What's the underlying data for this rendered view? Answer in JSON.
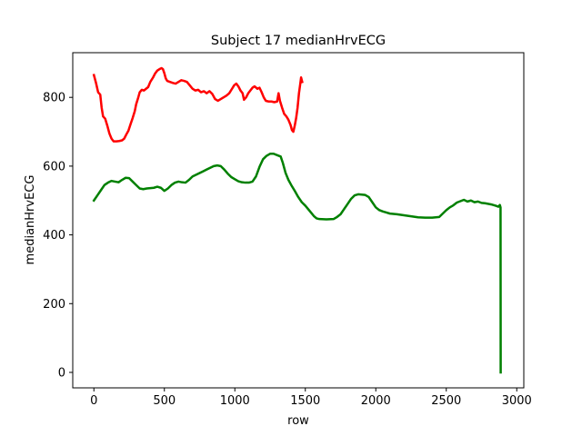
{
  "chart_data": {
    "type": "line",
    "title": "Subject 17 medianHrvECG",
    "xlabel": "row",
    "ylabel": "medianHrvECG",
    "xlim": [
      -150,
      3050
    ],
    "ylim": [
      -45,
      930
    ],
    "xticks": [
      0,
      500,
      1000,
      1500,
      2000,
      2500,
      3000
    ],
    "yticks": [
      0,
      200,
      400,
      600,
      800
    ],
    "grid": false,
    "legend": "none",
    "series": [
      {
        "color": "#ff0000",
        "points": [
          [
            0,
            865
          ],
          [
            15,
            842
          ],
          [
            30,
            815
          ],
          [
            45,
            808
          ],
          [
            55,
            770
          ],
          [
            65,
            745
          ],
          [
            80,
            738
          ],
          [
            95,
            718
          ],
          [
            110,
            695
          ],
          [
            125,
            680
          ],
          [
            140,
            672
          ],
          [
            160,
            672
          ],
          [
            180,
            673
          ],
          [
            200,
            675
          ],
          [
            215,
            680
          ],
          [
            230,
            692
          ],
          [
            245,
            703
          ],
          [
            260,
            722
          ],
          [
            275,
            740
          ],
          [
            290,
            760
          ],
          [
            300,
            780
          ],
          [
            315,
            800
          ],
          [
            325,
            815
          ],
          [
            340,
            822
          ],
          [
            355,
            820
          ],
          [
            370,
            825
          ],
          [
            385,
            830
          ],
          [
            400,
            845
          ],
          [
            420,
            858
          ],
          [
            435,
            870
          ],
          [
            450,
            878
          ],
          [
            465,
            882
          ],
          [
            480,
            885
          ],
          [
            490,
            882
          ],
          [
            500,
            870
          ],
          [
            510,
            855
          ],
          [
            520,
            848
          ],
          [
            540,
            845
          ],
          [
            560,
            842
          ],
          [
            580,
            840
          ],
          [
            600,
            845
          ],
          [
            620,
            850
          ],
          [
            640,
            848
          ],
          [
            660,
            845
          ],
          [
            680,
            835
          ],
          [
            700,
            825
          ],
          [
            720,
            820
          ],
          [
            740,
            822
          ],
          [
            760,
            815
          ],
          [
            780,
            818
          ],
          [
            800,
            812
          ],
          [
            820,
            818
          ],
          [
            840,
            810
          ],
          [
            860,
            795
          ],
          [
            880,
            790
          ],
          [
            900,
            795
          ],
          [
            920,
            800
          ],
          [
            940,
            805
          ],
          [
            960,
            812
          ],
          [
            980,
            825
          ],
          [
            995,
            835
          ],
          [
            1010,
            840
          ],
          [
            1025,
            832
          ],
          [
            1040,
            820
          ],
          [
            1055,
            812
          ],
          [
            1065,
            793
          ],
          [
            1080,
            800
          ],
          [
            1095,
            812
          ],
          [
            1110,
            820
          ],
          [
            1125,
            828
          ],
          [
            1140,
            832
          ],
          [
            1160,
            825
          ],
          [
            1175,
            828
          ],
          [
            1190,
            815
          ],
          [
            1205,
            800
          ],
          [
            1220,
            790
          ],
          [
            1240,
            788
          ],
          [
            1260,
            788
          ],
          [
            1280,
            786
          ],
          [
            1300,
            788
          ],
          [
            1310,
            812
          ],
          [
            1320,
            790
          ],
          [
            1335,
            770
          ],
          [
            1350,
            752
          ],
          [
            1365,
            745
          ],
          [
            1380,
            735
          ],
          [
            1395,
            720
          ],
          [
            1405,
            705
          ],
          [
            1415,
            700
          ],
          [
            1425,
            718
          ],
          [
            1435,
            740
          ],
          [
            1445,
            770
          ],
          [
            1455,
            812
          ],
          [
            1465,
            842
          ],
          [
            1470,
            858
          ],
          [
            1478,
            845
          ]
        ]
      },
      {
        "color": "#008000",
        "points": [
          [
            0,
            500
          ],
          [
            25,
            515
          ],
          [
            50,
            530
          ],
          [
            75,
            545
          ],
          [
            100,
            552
          ],
          [
            125,
            557
          ],
          [
            150,
            555
          ],
          [
            175,
            553
          ],
          [
            200,
            560
          ],
          [
            225,
            566
          ],
          [
            250,
            565
          ],
          [
            275,
            555
          ],
          [
            300,
            545
          ],
          [
            325,
            535
          ],
          [
            350,
            533
          ],
          [
            375,
            535
          ],
          [
            400,
            536
          ],
          [
            425,
            537
          ],
          [
            450,
            540
          ],
          [
            475,
            537
          ],
          [
            500,
            528
          ],
          [
            525,
            535
          ],
          [
            550,
            545
          ],
          [
            575,
            552
          ],
          [
            600,
            555
          ],
          [
            625,
            553
          ],
          [
            650,
            552
          ],
          [
            675,
            560
          ],
          [
            700,
            570
          ],
          [
            725,
            575
          ],
          [
            750,
            580
          ],
          [
            775,
            585
          ],
          [
            800,
            590
          ],
          [
            825,
            595
          ],
          [
            850,
            600
          ],
          [
            875,
            602
          ],
          [
            900,
            600
          ],
          [
            925,
            590
          ],
          [
            950,
            578
          ],
          [
            975,
            568
          ],
          [
            1000,
            562
          ],
          [
            1025,
            556
          ],
          [
            1050,
            553
          ],
          [
            1075,
            552
          ],
          [
            1100,
            552
          ],
          [
            1125,
            555
          ],
          [
            1150,
            570
          ],
          [
            1175,
            598
          ],
          [
            1200,
            620
          ],
          [
            1225,
            630
          ],
          [
            1250,
            636
          ],
          [
            1275,
            636
          ],
          [
            1300,
            632
          ],
          [
            1325,
            628
          ],
          [
            1340,
            610
          ],
          [
            1360,
            580
          ],
          [
            1380,
            560
          ],
          [
            1400,
            545
          ],
          [
            1425,
            528
          ],
          [
            1450,
            510
          ],
          [
            1475,
            495
          ],
          [
            1500,
            485
          ],
          [
            1520,
            475
          ],
          [
            1540,
            465
          ],
          [
            1560,
            455
          ],
          [
            1580,
            448
          ],
          [
            1600,
            446
          ],
          [
            1650,
            445
          ],
          [
            1700,
            446
          ],
          [
            1725,
            452
          ],
          [
            1750,
            460
          ],
          [
            1775,
            475
          ],
          [
            1800,
            490
          ],
          [
            1825,
            505
          ],
          [
            1850,
            515
          ],
          [
            1875,
            518
          ],
          [
            1900,
            517
          ],
          [
            1925,
            516
          ],
          [
            1950,
            510
          ],
          [
            1975,
            495
          ],
          [
            2000,
            480
          ],
          [
            2025,
            472
          ],
          [
            2050,
            468
          ],
          [
            2075,
            465
          ],
          [
            2100,
            462
          ],
          [
            2150,
            460
          ],
          [
            2200,
            457
          ],
          [
            2250,
            454
          ],
          [
            2300,
            451
          ],
          [
            2350,
            450
          ],
          [
            2400,
            450
          ],
          [
            2450,
            452
          ],
          [
            2475,
            462
          ],
          [
            2500,
            472
          ],
          [
            2525,
            480
          ],
          [
            2550,
            486
          ],
          [
            2575,
            494
          ],
          [
            2600,
            498
          ],
          [
            2625,
            502
          ],
          [
            2650,
            497
          ],
          [
            2675,
            500
          ],
          [
            2700,
            495
          ],
          [
            2725,
            497
          ],
          [
            2750,
            493
          ],
          [
            2775,
            492
          ],
          [
            2800,
            490
          ],
          [
            2825,
            488
          ],
          [
            2850,
            485
          ],
          [
            2870,
            482
          ],
          [
            2880,
            487
          ],
          [
            2885,
            480
          ],
          [
            2886,
            0
          ]
        ]
      }
    ]
  }
}
